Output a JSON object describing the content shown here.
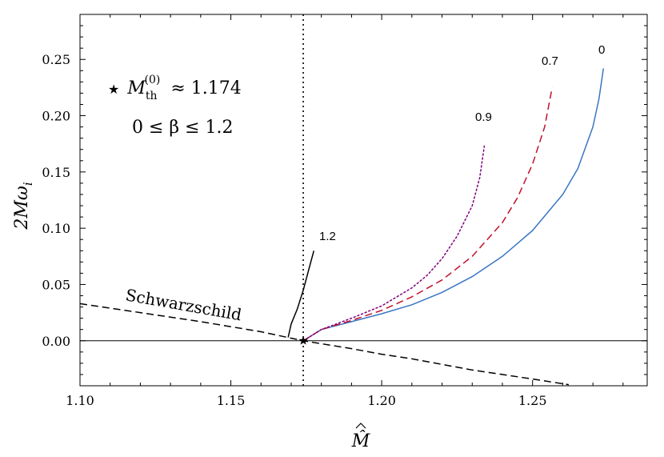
{
  "chart_data": {
    "type": "line",
    "xlabel": "M̂",
    "ylabel": "2Mω",
    "ylabel_sub": "i",
    "xlim": [
      1.1,
      1.288
    ],
    "ylim": [
      -0.04,
      0.29
    ],
    "xticks": [
      1.1,
      1.15,
      1.2,
      1.25
    ],
    "xtick_labels": [
      "1.10",
      "1.15",
      "1.20",
      "1.25"
    ],
    "yticks": [
      0.0,
      0.05,
      0.1,
      0.15,
      0.2,
      0.25
    ],
    "ytick_labels": [
      "0.00",
      "0.05",
      "0.10",
      "0.15",
      "0.20",
      "0.25"
    ],
    "grid": false,
    "legend": "none",
    "annotation": {
      "star": "★",
      "threshold_label": "M",
      "threshold_sub": "th",
      "threshold_sup": "(0)",
      "threshold_value": "≈ 1.174",
      "beta_range": "0 ≤ β ≤ 1.2"
    },
    "vertical_line": {
      "x": 1.174,
      "style": "dotted"
    },
    "horizontal_line": {
      "y": 0.0
    },
    "marker": {
      "x": 1.174,
      "y": 0.0,
      "symbol": "star"
    },
    "series": [
      {
        "name": "Schwarzschild",
        "label": "Schwarzschild",
        "color": "#000000",
        "style": "dashed",
        "x": [
          1.1,
          1.12,
          1.14,
          1.16,
          1.174,
          1.19,
          1.2,
          1.21,
          1.22,
          1.23,
          1.24,
          1.25,
          1.262
        ],
        "y": [
          0.033,
          0.025,
          0.017,
          0.008,
          0.0,
          -0.007,
          -0.012,
          -0.016,
          -0.021,
          -0.026,
          -0.03,
          -0.034,
          -0.039
        ]
      },
      {
        "name": "0",
        "label": "0",
        "color": "#3a75c4",
        "style": "solid",
        "x": [
          1.174,
          1.18,
          1.19,
          1.2,
          1.21,
          1.22,
          1.23,
          1.24,
          1.25,
          1.26,
          1.265,
          1.27,
          1.272,
          1.2735
        ],
        "y": [
          0.0,
          0.01,
          0.017,
          0.024,
          0.032,
          0.043,
          0.057,
          0.075,
          0.098,
          0.13,
          0.153,
          0.19,
          0.215,
          0.242
        ]
      },
      {
        "name": "0.7",
        "label": "0.7",
        "color": "#c0102a",
        "style": "dashed",
        "x": [
          1.174,
          1.18,
          1.19,
          1.2,
          1.21,
          1.22,
          1.23,
          1.24,
          1.245,
          1.25,
          1.254,
          1.2565
        ],
        "y": [
          0.0,
          0.01,
          0.018,
          0.027,
          0.039,
          0.054,
          0.075,
          0.105,
          0.127,
          0.157,
          0.19,
          0.225
        ]
      },
      {
        "name": "0.9",
        "label": "0.9",
        "color": "#800080",
        "style": "dotted",
        "x": [
          1.174,
          1.18,
          1.19,
          1.2,
          1.21,
          1.215,
          1.22,
          1.225,
          1.23,
          1.2325,
          1.234
        ],
        "y": [
          0.0,
          0.01,
          0.02,
          0.031,
          0.047,
          0.058,
          0.073,
          0.093,
          0.12,
          0.145,
          0.173
        ]
      },
      {
        "name": "1.2",
        "label": "1.2",
        "color": "#000000",
        "style": "solid",
        "x": [
          1.169,
          1.17,
          1.172,
          1.174,
          1.176,
          1.1775
        ],
        "y": [
          0.003,
          0.015,
          0.028,
          0.045,
          0.065,
          0.08
        ]
      }
    ]
  }
}
